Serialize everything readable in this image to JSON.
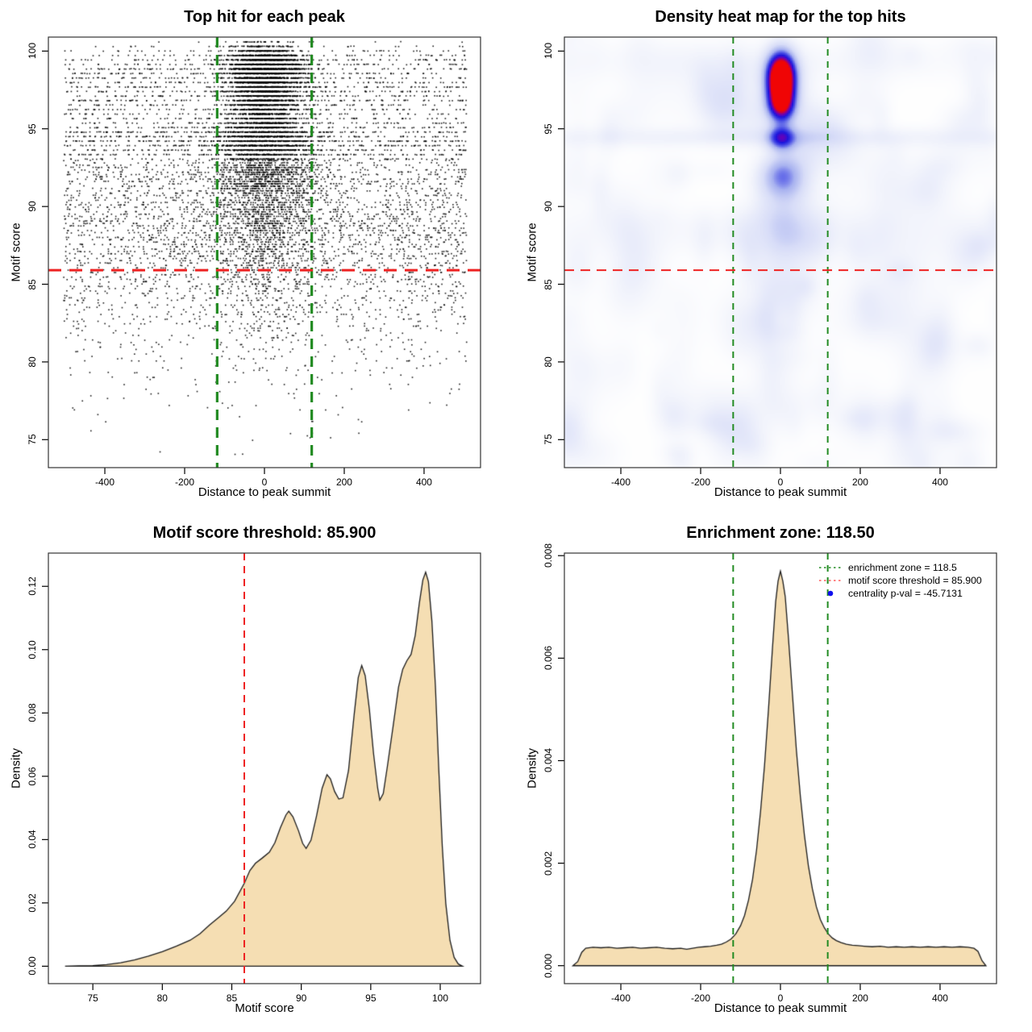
{
  "figure": {
    "background": "#ffffff",
    "panel_size": 640,
    "layout": "2x2"
  },
  "colors": {
    "scatter_point": "#000000",
    "enrichment_line": "#228B22",
    "threshold_line": "#EE2222",
    "legend_threshold_line": "#FF5A5A",
    "centrality_dot": "#1010EE",
    "density_fill": "#F5DEB3",
    "density_stroke": "#1a1a1a",
    "box_stroke": "#333333"
  },
  "chart_data": [
    {
      "id": "top_hits_scatter",
      "type": "scatter",
      "title": "Top hit for each peak",
      "xlabel": "Distance to peak summit",
      "ylabel": "Motif score",
      "xlim": [
        -541.5,
        541.5
      ],
      "ylim": [
        73.2,
        100.9
      ],
      "xticks": {
        "values": [
          -400,
          -200,
          0,
          200,
          400
        ],
        "labels": [
          "-400",
          "-200",
          "0",
          "200",
          "400"
        ]
      },
      "yticks": {
        "values": [
          75,
          80,
          85,
          90,
          95,
          100
        ],
        "labels": [
          "75",
          "80",
          "85",
          "90",
          "95",
          "100"
        ]
      },
      "lines": [
        {
          "name": "enrichment-zone-left-line",
          "orient": "v",
          "value": -118.5,
          "color_key": "enrichment_line",
          "width": 3.2,
          "dash": "13 9"
        },
        {
          "name": "enrichment-zone-right-line",
          "orient": "v",
          "value": 118.5,
          "color_key": "enrichment_line",
          "width": 3.2,
          "dash": "13 9"
        },
        {
          "name": "motif-threshold-line",
          "orient": "h",
          "value": 85.9,
          "color_key": "threshold_line",
          "width": 3,
          "dash": "16 10"
        }
      ],
      "points": {
        "seed": 1234567,
        "count": 13000,
        "x_uniform_range": [
          -505,
          505
        ],
        "center_prob_base": 0.18,
        "center_prob_slope": 0.045,
        "center_prob_min": 0.15,
        "center_prob_max": 0.8,
        "center_sigma_high": 46,
        "center_sigma_low": 62,
        "sigma_split": 95,
        "quantize_above_93": 0.29,
        "quantize_below_93": 0.15,
        "y_min": 73.3,
        "y_max": 100.72
      }
    },
    {
      "id": "density_heatmap",
      "type": "heatmap",
      "title": "Density heat map for the top hits",
      "xlabel": "Distance to peak summit",
      "ylabel": "Motif score",
      "xlim": [
        -541.5,
        541.5
      ],
      "ylim": [
        73.2,
        100.9
      ],
      "xticks": {
        "values": [
          -400,
          -200,
          0,
          200,
          400
        ],
        "labels": [
          "-400",
          "-200",
          "0",
          "200",
          "400"
        ]
      },
      "yticks": {
        "values": [
          75,
          80,
          85,
          90,
          95,
          100
        ],
        "labels": [
          "75",
          "80",
          "85",
          "90",
          "95",
          "100"
        ]
      },
      "lines": [
        {
          "name": "enrichment-zone-left-line",
          "orient": "v",
          "value": -118.5,
          "color_key": "enrichment_line",
          "width": 2,
          "dash": "8 7"
        },
        {
          "name": "enrichment-zone-right-line",
          "orient": "v",
          "value": 118.5,
          "color_key": "enrichment_line",
          "width": 2,
          "dash": "8 7"
        },
        {
          "name": "motif-threshold-line",
          "orient": "h",
          "value": 85.9,
          "color_key": "threshold_line",
          "width": 2,
          "dash": "12 8"
        }
      ],
      "blobs": [
        {
          "x": 0,
          "y": 98.7,
          "sx": 26,
          "sy": 1.05,
          "amp": 1.0
        },
        {
          "x": 0,
          "y": 97.4,
          "sx": 27,
          "sy": 1.1,
          "amp": 0.78
        },
        {
          "x": 0,
          "y": 96.4,
          "sx": 24,
          "sy": 0.75,
          "amp": 0.5
        },
        {
          "x": 0,
          "y": 94.45,
          "sx": 25,
          "sy": 0.55,
          "amp": 0.58
        },
        {
          "x": -3,
          "y": 92.3,
          "sx": 38,
          "sy": 0.8,
          "amp": 0.3
        },
        {
          "x": 3,
          "y": 91.3,
          "sx": 42,
          "sy": 0.8,
          "amp": 0.24
        },
        {
          "x": 0,
          "y": 89.6,
          "sx": 48,
          "sy": 0.9,
          "amp": 0.17
        },
        {
          "x": 0,
          "y": 88.0,
          "sx": 52,
          "sy": 1.1,
          "amp": 0.13
        },
        {
          "x": 0,
          "y": 86.0,
          "sx": 58,
          "sy": 1.4,
          "amp": 0.09
        },
        {
          "x": 0,
          "y": 84.0,
          "sx": 62,
          "sy": 1.6,
          "amp": 0.06
        },
        {
          "x": 0,
          "y": 94.5,
          "sx": 560,
          "sy": 0.45,
          "amp": 0.11
        },
        {
          "x": 0,
          "y": 99.4,
          "sx": 560,
          "sy": 0.9,
          "amp": 0.055
        },
        {
          "x": 0,
          "y": 89.0,
          "sx": 560,
          "sy": 0.8,
          "amp": 0.05
        },
        {
          "x": 0,
          "y": 87.8,
          "sx": 560,
          "sy": 0.8,
          "amp": 0.04
        }
      ],
      "noise": {
        "seed": 99,
        "count": 170,
        "amp": [
          0.02,
          0.08
        ],
        "sx": [
          18,
          50
        ],
        "sy": [
          0.5,
          1.6
        ],
        "x": [
          -555,
          555
        ],
        "y": [
          73,
          101.5
        ]
      },
      "colormap": [
        [
          0.0,
          "#ffffff"
        ],
        [
          0.1,
          "#f2f4fc"
        ],
        [
          0.28,
          "#d8ddf8"
        ],
        [
          0.45,
          "#a8b2f0"
        ],
        [
          0.6,
          "#4a50e6"
        ],
        [
          0.72,
          "#1b16dd"
        ],
        [
          0.84,
          "#6e00b4"
        ],
        [
          1.0,
          "#f00505"
        ]
      ]
    },
    {
      "id": "motif_score_density",
      "type": "area",
      "title": "Motif score threshold: 85.900",
      "xlabel": "Motif score",
      "ylabel": "Density",
      "xlim": [
        71.8,
        102.9
      ],
      "ylim": [
        -0.0055,
        0.1305
      ],
      "xticks": {
        "values": [
          75,
          80,
          85,
          90,
          95,
          100
        ],
        "labels": [
          "75",
          "80",
          "85",
          "90",
          "95",
          "100"
        ]
      },
      "yticks": {
        "values": [
          0,
          0.02,
          0.04,
          0.06,
          0.08,
          0.1,
          0.12
        ],
        "labels": [
          "0.00",
          "0.02",
          "0.04",
          "0.06",
          "0.08",
          "0.10",
          "0.12"
        ]
      },
      "lines": [
        {
          "name": "motif-threshold-line",
          "orient": "v",
          "value": 85.9,
          "color_key": "threshold_line",
          "width": 2,
          "dash": "9 7"
        }
      ],
      "curve": [
        [
          73,
          0
        ],
        [
          74,
          0.0001
        ],
        [
          75,
          0.0002
        ],
        [
          76,
          0.0005
        ],
        [
          77,
          0.0011
        ],
        [
          78,
          0.002
        ],
        [
          79,
          0.0032
        ],
        [
          80,
          0.0046
        ],
        [
          81,
          0.0063
        ],
        [
          82,
          0.0082
        ],
        [
          82.7,
          0.0102
        ],
        [
          83.4,
          0.013
        ],
        [
          84,
          0.0152
        ],
        [
          84.6,
          0.0174
        ],
        [
          85.2,
          0.0205
        ],
        [
          85.9,
          0.0262
        ],
        [
          86.3,
          0.0302
        ],
        [
          86.7,
          0.0325
        ],
        [
          87.2,
          0.0342
        ],
        [
          87.7,
          0.036
        ],
        [
          88.1,
          0.039
        ],
        [
          88.5,
          0.0438
        ],
        [
          88.9,
          0.0478
        ],
        [
          89.1,
          0.049
        ],
        [
          89.4,
          0.0472
        ],
        [
          89.8,
          0.0428
        ],
        [
          90.1,
          0.0388
        ],
        [
          90.35,
          0.0372
        ],
        [
          90.7,
          0.0398
        ],
        [
          91.1,
          0.0475
        ],
        [
          91.5,
          0.0562
        ],
        [
          91.85,
          0.0605
        ],
        [
          92.1,
          0.0592
        ],
        [
          92.4,
          0.0552
        ],
        [
          92.7,
          0.0528
        ],
        [
          93,
          0.0532
        ],
        [
          93.4,
          0.0618
        ],
        [
          93.8,
          0.0792
        ],
        [
          94.1,
          0.0912
        ],
        [
          94.35,
          0.095
        ],
        [
          94.6,
          0.0918
        ],
        [
          94.9,
          0.0812
        ],
        [
          95.2,
          0.0672
        ],
        [
          95.5,
          0.0562
        ],
        [
          95.65,
          0.0525
        ],
        [
          95.9,
          0.0545
        ],
        [
          96.2,
          0.0632
        ],
        [
          96.6,
          0.0755
        ],
        [
          97,
          0.0882
        ],
        [
          97.3,
          0.0938
        ],
        [
          97.6,
          0.0965
        ],
        [
          97.9,
          0.0985
        ],
        [
          98.2,
          0.1045
        ],
        [
          98.5,
          0.1148
        ],
        [
          98.75,
          0.122
        ],
        [
          98.95,
          0.1245
        ],
        [
          99.15,
          0.1215
        ],
        [
          99.4,
          0.109
        ],
        [
          99.65,
          0.0888
        ],
        [
          99.9,
          0.0618
        ],
        [
          100.15,
          0.0378
        ],
        [
          100.4,
          0.0198
        ],
        [
          100.7,
          0.0082
        ],
        [
          101,
          0.0028
        ],
        [
          101.3,
          0.0007
        ],
        [
          101.6,
          0
        ]
      ]
    },
    {
      "id": "distance_density",
      "type": "area",
      "title": "Enrichment zone: 118.50",
      "xlabel": "Distance to peak summit",
      "ylabel": "Density",
      "xlim": [
        -541.5,
        541.5
      ],
      "ylim": [
        -0.00035,
        0.00805
      ],
      "xticks": {
        "values": [
          -400,
          -200,
          0,
          200,
          400
        ],
        "labels": [
          "-400",
          "-200",
          "0",
          "200",
          "400"
        ]
      },
      "yticks": {
        "values": [
          0,
          0.002,
          0.004,
          0.006,
          0.008
        ],
        "labels": [
          "0.000",
          "0.002",
          "0.004",
          "0.006",
          "0.008"
        ]
      },
      "lines": [
        {
          "name": "enrichment-zone-left-line",
          "orient": "v",
          "value": -118.5,
          "color_key": "enrichment_line",
          "width": 2,
          "dash": "8 7"
        },
        {
          "name": "enrichment-zone-right-line",
          "orient": "v",
          "value": 118.5,
          "color_key": "enrichment_line",
          "width": 2,
          "dash": "8 7"
        }
      ],
      "curve": [
        [
          -520,
          0
        ],
        [
          -508,
          8e-05
        ],
        [
          -498,
          0.00026
        ],
        [
          -488,
          0.00034
        ],
        [
          -470,
          0.00036
        ],
        [
          -450,
          0.00035
        ],
        [
          -430,
          0.00036
        ],
        [
          -410,
          0.00034
        ],
        [
          -390,
          0.00035
        ],
        [
          -370,
          0.00036
        ],
        [
          -350,
          0.00034
        ],
        [
          -330,
          0.00035
        ],
        [
          -310,
          0.00036
        ],
        [
          -290,
          0.00034
        ],
        [
          -270,
          0.00033
        ],
        [
          -250,
          0.00034
        ],
        [
          -235,
          0.00032
        ],
        [
          -220,
          0.00034
        ],
        [
          -205,
          0.00036
        ],
        [
          -190,
          0.00037
        ],
        [
          -175,
          0.00038
        ],
        [
          -160,
          0.0004
        ],
        [
          -148,
          0.00042
        ],
        [
          -136,
          0.00046
        ],
        [
          -124,
          0.00052
        ],
        [
          -112,
          0.00062
        ],
        [
          -100,
          0.00078
        ],
        [
          -90,
          0.00098
        ],
        [
          -80,
          0.00128
        ],
        [
          -70,
          0.00168
        ],
        [
          -60,
          0.00225
        ],
        [
          -50,
          0.003
        ],
        [
          -40,
          0.0039
        ],
        [
          -30,
          0.005
        ],
        [
          -20,
          0.0062
        ],
        [
          -12,
          0.0071
        ],
        [
          -6,
          0.0075
        ],
        [
          0,
          0.0077
        ],
        [
          6,
          0.0075
        ],
        [
          12,
          0.0072
        ],
        [
          20,
          0.0064
        ],
        [
          30,
          0.0053
        ],
        [
          40,
          0.0042
        ],
        [
          50,
          0.0033
        ],
        [
          60,
          0.00255
        ],
        [
          70,
          0.00195
        ],
        [
          80,
          0.0015
        ],
        [
          90,
          0.00115
        ],
        [
          100,
          0.0009
        ],
        [
          110,
          0.00074
        ],
        [
          120,
          0.00062
        ],
        [
          130,
          0.00054
        ],
        [
          140,
          0.00049
        ],
        [
          152,
          0.00045
        ],
        [
          165,
          0.00042
        ],
        [
          180,
          0.0004
        ],
        [
          195,
          0.00039
        ],
        [
          210,
          0.00038
        ],
        [
          230,
          0.00037
        ],
        [
          250,
          0.00038
        ],
        [
          270,
          0.00036
        ],
        [
          290,
          0.00037
        ],
        [
          310,
          0.00036
        ],
        [
          330,
          0.00037
        ],
        [
          350,
          0.00036
        ],
        [
          370,
          0.00037
        ],
        [
          390,
          0.00036
        ],
        [
          410,
          0.00037
        ],
        [
          430,
          0.00036
        ],
        [
          450,
          0.00037
        ],
        [
          470,
          0.00036
        ],
        [
          485,
          0.00034
        ],
        [
          495,
          0.00028
        ],
        [
          505,
          0.0001
        ],
        [
          515,
          0
        ]
      ],
      "legend": {
        "items": [
          {
            "label": "enrichment zone = 118.5",
            "marker": "line",
            "color_key": "enrichment_line",
            "dash": "2.5 3.5"
          },
          {
            "label": "motif score threshold = 85.900",
            "marker": "line",
            "color_key": "legend_threshold_line",
            "dash": "2.5 3.5"
          },
          {
            "label": "centrality p-val = -45.7131",
            "marker": "dot",
            "color_key": "centrality_dot"
          }
        ]
      }
    }
  ]
}
